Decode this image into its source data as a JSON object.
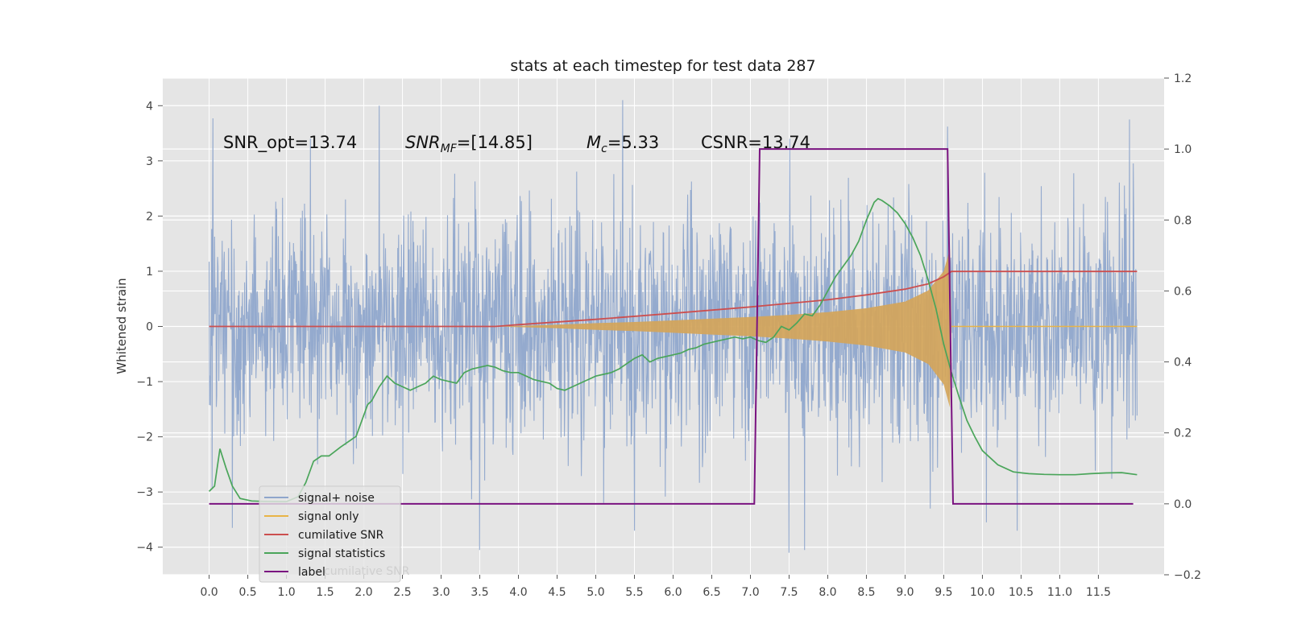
{
  "chart_data": {
    "type": "line",
    "title": "stats at each timestep for test data 287",
    "ylabel": "Whitened strain",
    "xlim": [
      -0.6,
      12.35
    ],
    "ylim": [
      -4.5,
      4.5
    ],
    "y2lim": [
      -0.2,
      1.2
    ],
    "x_ticks": [
      "0.0",
      "0.5",
      "1.0",
      "1.5",
      "2.0",
      "2.5",
      "3.0",
      "3.5",
      "4.0",
      "4.5",
      "5.0",
      "5.5",
      "6.0",
      "6.5",
      "7.0",
      "7.5",
      "8.0",
      "8.5",
      "9.0",
      "9.5",
      "10.0",
      "10.5",
      "11.0",
      "11.5"
    ],
    "y_ticks": [
      "4",
      "3",
      "2",
      "1",
      "0",
      "−1",
      "−2",
      "−3",
      "−4"
    ],
    "y2_ticks": [
      "1.2",
      "1.0",
      "0.8",
      "0.6",
      "0.4",
      "0.2",
      "0.0",
      "−0.2"
    ],
    "annotations": {
      "snr_opt": "SNR_opt=13.74",
      "snr_mf_main": "SNR",
      "snr_mf_sub": "MF",
      "snr_mf_value": "=[14.85]",
      "mc_main": "M",
      "mc_sub": "c",
      "mc_value": "=5.33",
      "csnr": "CSNR=13.74"
    },
    "legend": {
      "placement": "lower-left",
      "entries": [
        "signal+ noise",
        "signal only",
        "cumilative SNR",
        "signal statistics",
        "label"
      ],
      "ghost_text": "cumilative SNR"
    },
    "colors": {
      "noise": "#8fa6cc",
      "signal": "#e8b447",
      "signal_fill": "#d4a55a",
      "csnr": "#cc4f4f",
      "stats": "#4aa55a",
      "label": "#7a1380",
      "plot_bg": "#e5e5e5",
      "grid": "#ffffff"
    },
    "series": [
      {
        "name": "signal+ noise",
        "axis": "left",
        "x_range": [
          0,
          12.0
        ],
        "envelope_abs": 2.3,
        "peaks": [
          {
            "x": 0.05,
            "y": 3.77
          },
          {
            "x": 2.2,
            "y": 4.0
          },
          {
            "x": 5.35,
            "y": 4.1
          },
          {
            "x": 9.55,
            "y": 3.62
          },
          {
            "x": 11.9,
            "y": 3.75
          },
          {
            "x": 0.3,
            "y": -3.65
          },
          {
            "x": 3.5,
            "y": -4.05
          },
          {
            "x": 5.5,
            "y": -3.7
          },
          {
            "x": 7.5,
            "y": -4.1
          },
          {
            "x": 7.7,
            "y": -4.05
          },
          {
            "x": 10.05,
            "y": -3.55
          },
          {
            "x": 10.45,
            "y": -3.7
          }
        ]
      },
      {
        "name": "signal only",
        "axis": "left",
        "envelope": [
          {
            "x": 3.7,
            "y": 0.0
          },
          {
            "x": 4.5,
            "y": 0.03
          },
          {
            "x": 5.0,
            "y": 0.06
          },
          {
            "x": 5.5,
            "y": 0.08
          },
          {
            "x": 6.0,
            "y": 0.11
          },
          {
            "x": 6.5,
            "y": 0.14
          },
          {
            "x": 7.0,
            "y": 0.17
          },
          {
            "x": 7.5,
            "y": 0.21
          },
          {
            "x": 8.0,
            "y": 0.26
          },
          {
            "x": 8.5,
            "y": 0.33
          },
          {
            "x": 9.0,
            "y": 0.45
          },
          {
            "x": 9.3,
            "y": 0.65
          },
          {
            "x": 9.5,
            "y": 1.0
          },
          {
            "x": 9.58,
            "y": 1.4
          },
          {
            "x": 9.6,
            "y": 0.0
          }
        ],
        "after_merger": {
          "x_range": [
            9.6,
            12.0
          ],
          "y": 0.0
        }
      },
      {
        "name": "cumilative SNR",
        "axis": "right",
        "x": [
          0,
          1,
          2,
          3,
          3.7,
          4,
          5,
          6,
          7,
          8,
          8.5,
          9,
          9.3,
          9.5,
          9.6,
          12.0
        ],
        "values": [
          0.5,
          0.5,
          0.5,
          0.5,
          0.5,
          0.505,
          0.52,
          0.537,
          0.555,
          0.575,
          0.589,
          0.605,
          0.62,
          0.64,
          0.655,
          0.655
        ]
      },
      {
        "name": "signal statistics",
        "axis": "right",
        "x": [
          0.0,
          0.07,
          0.14,
          0.22,
          0.3,
          0.4,
          0.55,
          0.7,
          1.0,
          1.15,
          1.25,
          1.35,
          1.45,
          1.55,
          1.7,
          1.9,
          2.05,
          2.1,
          2.2,
          2.3,
          2.4,
          2.5,
          2.6,
          2.7,
          2.8,
          2.9,
          3.0,
          3.1,
          3.2,
          3.3,
          3.4,
          3.5,
          3.6,
          3.7,
          3.8,
          3.9,
          4.0,
          4.1,
          4.2,
          4.3,
          4.4,
          4.5,
          4.6,
          4.7,
          4.8,
          4.9,
          5.0,
          5.1,
          5.2,
          5.3,
          5.4,
          5.5,
          5.6,
          5.7,
          5.8,
          5.9,
          6.0,
          6.1,
          6.2,
          6.3,
          6.4,
          6.5,
          6.6,
          6.7,
          6.8,
          6.9,
          7.0,
          7.1,
          7.2,
          7.3,
          7.4,
          7.5,
          7.6,
          7.7,
          7.8,
          7.9,
          8.0,
          8.1,
          8.2,
          8.3,
          8.4,
          8.5,
          8.6,
          8.65,
          8.7,
          8.8,
          8.9,
          9.0,
          9.1,
          9.2,
          9.3,
          9.4,
          9.5,
          9.6,
          9.7,
          9.8,
          9.9,
          10.0,
          10.2,
          10.4,
          10.6,
          10.8,
          11.0,
          11.2,
          11.4,
          11.6,
          11.8,
          12.0
        ],
        "values": [
          0.035,
          0.05,
          0.155,
          0.1,
          0.05,
          0.015,
          0.008,
          0.007,
          0.006,
          0.02,
          0.06,
          0.12,
          0.135,
          0.135,
          0.16,
          0.19,
          0.28,
          0.29,
          0.33,
          0.36,
          0.34,
          0.33,
          0.32,
          0.33,
          0.34,
          0.36,
          0.35,
          0.345,
          0.34,
          0.37,
          0.38,
          0.385,
          0.39,
          0.385,
          0.375,
          0.37,
          0.37,
          0.36,
          0.35,
          0.345,
          0.34,
          0.325,
          0.32,
          0.33,
          0.34,
          0.35,
          0.36,
          0.365,
          0.37,
          0.38,
          0.395,
          0.41,
          0.42,
          0.4,
          0.41,
          0.415,
          0.42,
          0.425,
          0.435,
          0.44,
          0.45,
          0.455,
          0.46,
          0.465,
          0.47,
          0.465,
          0.47,
          0.46,
          0.455,
          0.47,
          0.5,
          0.49,
          0.51,
          0.535,
          0.53,
          0.56,
          0.6,
          0.64,
          0.67,
          0.7,
          0.74,
          0.8,
          0.85,
          0.86,
          0.855,
          0.84,
          0.82,
          0.79,
          0.75,
          0.7,
          0.63,
          0.55,
          0.45,
          0.37,
          0.3,
          0.235,
          0.19,
          0.15,
          0.11,
          0.09,
          0.085,
          0.083,
          0.082,
          0.082,
          0.085,
          0.087,
          0.088,
          0.082
        ]
      },
      {
        "name": "label",
        "axis": "right",
        "x": [
          0.0,
          7.05,
          7.12,
          9.55,
          9.62,
          11.95
        ],
        "values": [
          0.0,
          0.0,
          1.0,
          1.0,
          0.0,
          0.0
        ]
      }
    ]
  }
}
